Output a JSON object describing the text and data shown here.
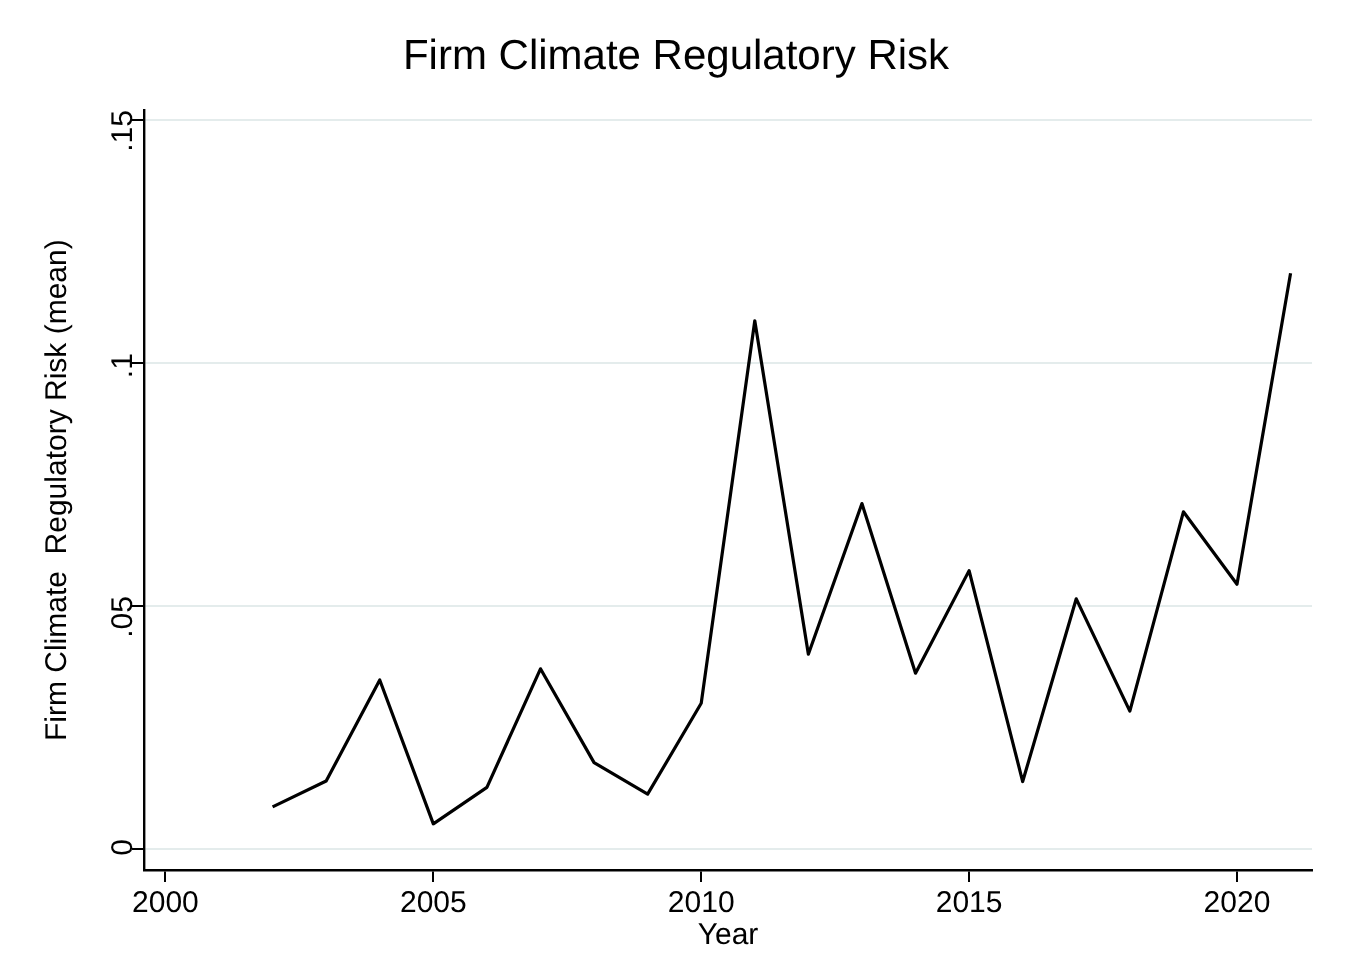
{
  "chart_data": {
    "type": "line",
    "title": "Firm Climate Regulatory Risk",
    "xlabel": "Year",
    "ylabel": "Firm Climate  Regulatory Risk (mean)",
    "x": [
      2002,
      2003,
      2004,
      2005,
      2006,
      2007,
      2008,
      2009,
      2010,
      2011,
      2012,
      2013,
      2014,
      2015,
      2016,
      2017,
      2018,
      2019,
      2020,
      2021
    ],
    "series": [
      {
        "color": "#000000",
        "values": [
          0.0087,
          0.014,
          0.0348,
          0.0052,
          0.0127,
          0.0371,
          0.0178,
          0.0113,
          0.03,
          0.1087,
          0.0401,
          0.0711,
          0.0362,
          0.0573,
          0.0139,
          0.0515,
          0.0284,
          0.0694,
          0.0545,
          0.1185
        ]
      }
    ],
    "xlim": [
      1999.6,
      2021.4
    ],
    "xticks": [
      2000,
      2005,
      2010,
      2015,
      2020
    ],
    "ylim": [
      -0.0043,
      0.152
    ],
    "yticks": [
      {
        "value": 0,
        "label": "0"
      },
      {
        "value": 0.05,
        "label": ".05"
      },
      {
        "value": 0.1,
        "label": ".1"
      },
      {
        "value": 0.15,
        "label": ".15"
      }
    ],
    "grid": "y",
    "legend": false,
    "marker": "none",
    "line_style": "solid"
  }
}
